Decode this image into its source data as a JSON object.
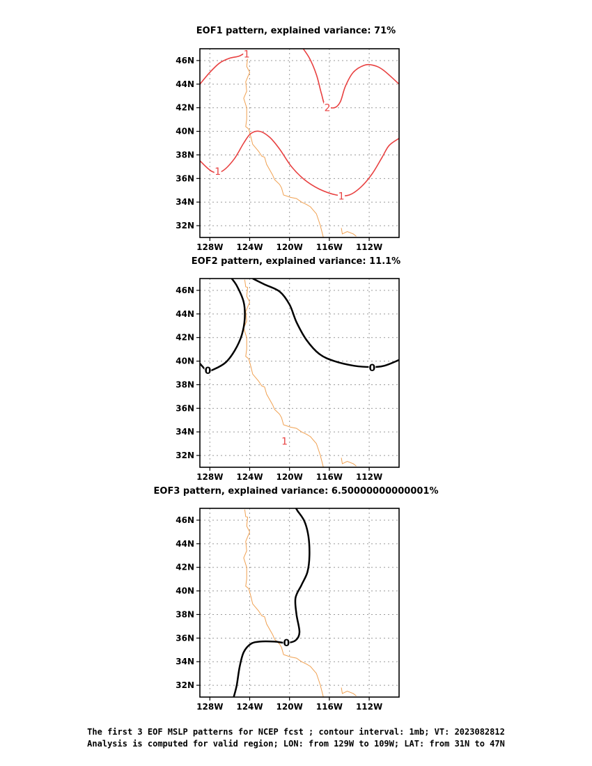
{
  "panels": [
    {
      "title": "EOF1 pattern, explained variance: 71%",
      "contour_color": "#e84040",
      "contours": [
        {
          "level": "1",
          "points": [
            [
              -129,
              44.0
            ],
            [
              -128,
              45.0
            ],
            [
              -127,
              45.8
            ],
            [
              -126,
              46.2
            ],
            [
              -125,
              46.4
            ],
            [
              -124,
              46.9
            ]
          ]
        },
        {
          "level": "2",
          "points": [
            [
              -118.8,
              47.2
            ],
            [
              -118,
              46.2
            ],
            [
              -117.3,
              44.8
            ],
            [
              -116.8,
              43.2
            ],
            [
              -116.4,
              42.2
            ],
            [
              -115.5,
              42.0
            ],
            [
              -114.9,
              42.5
            ],
            [
              -114.4,
              43.8
            ],
            [
              -113.6,
              45.0
            ],
            [
              -112.5,
              45.6
            ],
            [
              -111.6,
              45.6
            ],
            [
              -110.6,
              45.2
            ],
            [
              -109,
              44.0
            ]
          ]
        },
        {
          "level": "1",
          "points": [
            [
              -129,
              37.5
            ],
            [
              -127.8,
              36.6
            ],
            [
              -126.8,
              36.6
            ],
            [
              -125.6,
              37.6
            ],
            [
              -124.6,
              39.0
            ],
            [
              -123.9,
              39.8
            ],
            [
              -123.0,
              40.0
            ],
            [
              -122.0,
              39.5
            ],
            [
              -121.0,
              38.5
            ],
            [
              -119.8,
              37.0
            ],
            [
              -118.5,
              35.9
            ],
            [
              -117.0,
              35.1
            ],
            [
              -115.3,
              34.6
            ],
            [
              -114.0,
              34.6
            ],
            [
              -112.8,
              35.3
            ],
            [
              -111.7,
              36.4
            ],
            [
              -110.7,
              37.8
            ],
            [
              -110.0,
              38.8
            ],
            [
              -109,
              39.4
            ]
          ]
        }
      ],
      "labels": [
        {
          "text": "1",
          "lon": -124.3,
          "lat": 46.55
        },
        {
          "text": "2",
          "lon": -116.2,
          "lat": 42.0
        },
        {
          "text": "1",
          "lon": -127.2,
          "lat": 36.6
        },
        {
          "text": "1",
          "lon": -114.8,
          "lat": 34.5
        }
      ]
    },
    {
      "title": "EOF2 pattern, explained variance: 11.1%",
      "contour_color": "#000000",
      "contours": [
        {
          "level": "0",
          "points": [
            [
              -126.0,
              47.2
            ],
            [
              -125.3,
              46.4
            ],
            [
              -124.6,
              45.0
            ],
            [
              -124.5,
              43.6
            ],
            [
              -124.8,
              42.2
            ],
            [
              -125.5,
              40.9
            ],
            [
              -126.4,
              39.9
            ],
            [
              -127.6,
              39.3
            ],
            [
              -128.3,
              39.2
            ],
            [
              -129,
              39.8
            ]
          ]
        },
        {
          "level": "0",
          "points": [
            [
              -123.7,
              47.0
            ],
            [
              -122.5,
              46.5
            ],
            [
              -121.0,
              45.9
            ],
            [
              -120.0,
              44.8
            ],
            [
              -119.3,
              43.3
            ],
            [
              -118.3,
              41.8
            ],
            [
              -117.0,
              40.6
            ],
            [
              -115.5,
              40.0
            ],
            [
              -113.5,
              39.6
            ],
            [
              -111.8,
              39.5
            ],
            [
              -110.5,
              39.6
            ],
            [
              -109,
              40.1
            ]
          ]
        }
      ],
      "labels": [
        {
          "text": "0",
          "lon": -128.2,
          "lat": 39.2,
          "color": "#000000"
        },
        {
          "text": "0",
          "lon": -111.7,
          "lat": 39.45,
          "color": "#000000"
        },
        {
          "text": "1",
          "lon": -120.5,
          "lat": 33.2,
          "color": "#e84040"
        }
      ]
    },
    {
      "title": "EOF3 pattern, explained variance: 6.50000000000001%",
      "contour_color": "#000000",
      "contours": [
        {
          "level": "0",
          "points": [
            [
              -125.6,
              31.0
            ],
            [
              -125.3,
              32.0
            ],
            [
              -125.0,
              33.6
            ],
            [
              -124.6,
              34.8
            ],
            [
              -123.9,
              35.5
            ],
            [
              -123.0,
              35.7
            ],
            [
              -121.5,
              35.7
            ],
            [
              -120.3,
              35.6
            ],
            [
              -119.4,
              35.8
            ],
            [
              -119.0,
              36.5
            ],
            [
              -119.3,
              38.0
            ],
            [
              -119.4,
              39.4
            ],
            [
              -118.8,
              40.5
            ],
            [
              -118.2,
              41.6
            ],
            [
              -118.0,
              43.0
            ],
            [
              -118.1,
              44.6
            ],
            [
              -118.5,
              45.9
            ],
            [
              -119.2,
              46.8
            ],
            [
              -119.5,
              47.2
            ]
          ]
        }
      ],
      "labels": [
        {
          "text": "0",
          "lon": -120.3,
          "lat": 35.6,
          "color": "#000000"
        }
      ]
    }
  ],
  "lon_ticks": [
    "128W",
    "124W",
    "120W",
    "116W",
    "112W"
  ],
  "lat_ticks": [
    "46N",
    "44N",
    "42N",
    "40N",
    "38N",
    "36N",
    "34N",
    "32N"
  ],
  "coast_color": "#f0a050",
  "grid": true,
  "caption": {
    "line1": "The first 3 EOF MSLP patterns for NCEP fcst ; contour interval: 1mb; VT: 2023082812",
    "line2": "Analysis is computed for valid region; LON: from 129W to 109W; LAT: from 31N to 47N"
  }
}
